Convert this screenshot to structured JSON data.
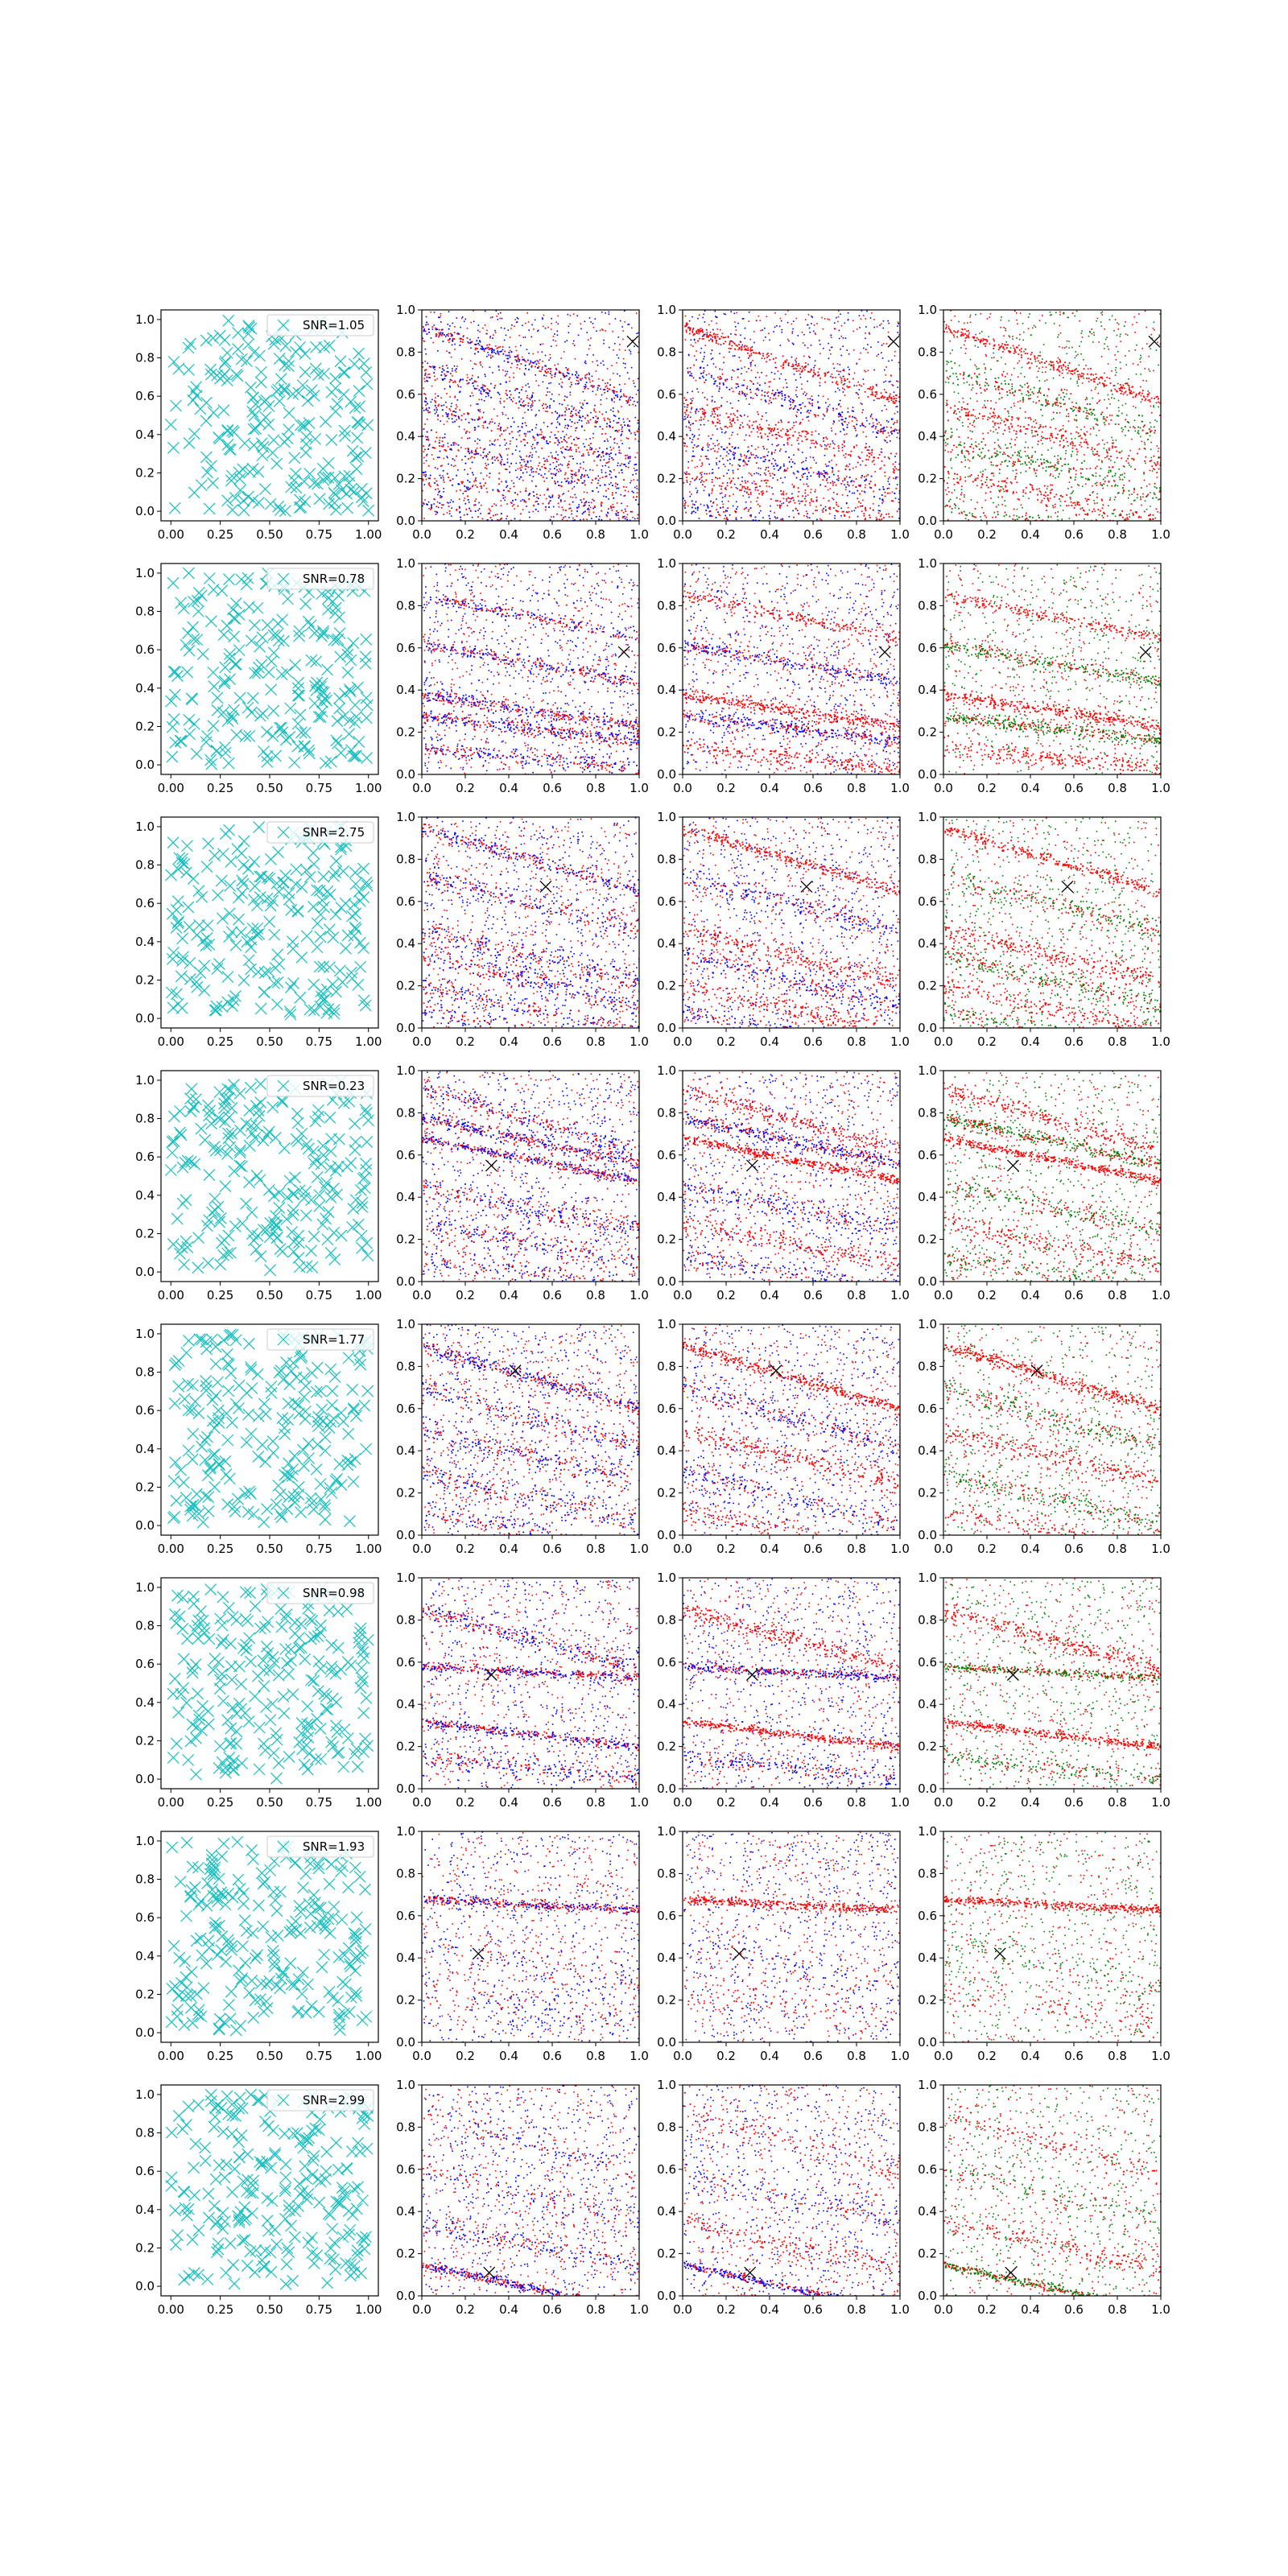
{
  "colors": {
    "marker_cyan": "#17bfbf",
    "red": "#ff0000",
    "blue": "#0000ff",
    "green": "#008000",
    "true_marker": "#000000"
  },
  "chart_data": {
    "type": "scatter",
    "layout": "grid 8 rows x 4 columns",
    "grid": false,
    "columns": [
      {
        "kind": "scatter",
        "marker": "x",
        "color": "cyan",
        "legend_placement": "upper-right"
      },
      {
        "kind": "scatter",
        "marker": ".",
        "series_colors": [
          "blue",
          "red"
        ],
        "true_marker": "x"
      },
      {
        "kind": "scatter",
        "marker": ".",
        "series_colors": [
          "blue",
          "red"
        ],
        "true_marker": "x"
      },
      {
        "kind": "scatter",
        "marker": ".",
        "series_colors": [
          "green",
          "red"
        ],
        "true_marker": "x"
      }
    ],
    "axes": {
      "first_column": {
        "xlim": [
          -0.05,
          1.05
        ],
        "ylim": [
          -0.05,
          1.05
        ],
        "xticks": [
          "0.00",
          "0.25",
          "0.50",
          "0.75",
          "1.00"
        ],
        "yticks": [
          "0.0",
          "0.2",
          "0.4",
          "0.6",
          "0.8",
          "1.0"
        ]
      },
      "other_columns": {
        "xlim": [
          0,
          1
        ],
        "ylim": [
          0,
          1
        ],
        "xticks": [
          "0.0",
          "0.2",
          "0.4",
          "0.6",
          "0.8",
          "1.0"
        ],
        "yticks": [
          "0.0",
          "0.2",
          "0.4",
          "0.6",
          "0.8",
          "1.0"
        ]
      }
    },
    "rows": [
      {
        "legend": "SNR=1.05",
        "true_point": [
          0.97,
          0.85
        ]
      },
      {
        "legend": "SNR=0.78",
        "true_point": [
          0.93,
          0.58
        ]
      },
      {
        "legend": "SNR=2.75",
        "true_point": [
          0.57,
          0.67
        ]
      },
      {
        "legend": "SNR=0.23",
        "true_point": [
          0.32,
          0.55
        ]
      },
      {
        "legend": "SNR=1.77",
        "true_point": [
          0.43,
          0.78
        ]
      },
      {
        "legend": "SNR=0.98",
        "true_point": [
          0.32,
          0.54
        ]
      },
      {
        "legend": "SNR=1.93",
        "true_point": [
          0.26,
          0.42
        ]
      },
      {
        "legend": "SNR=2.99",
        "true_point": [
          0.31,
          0.11
        ]
      }
    ]
  }
}
